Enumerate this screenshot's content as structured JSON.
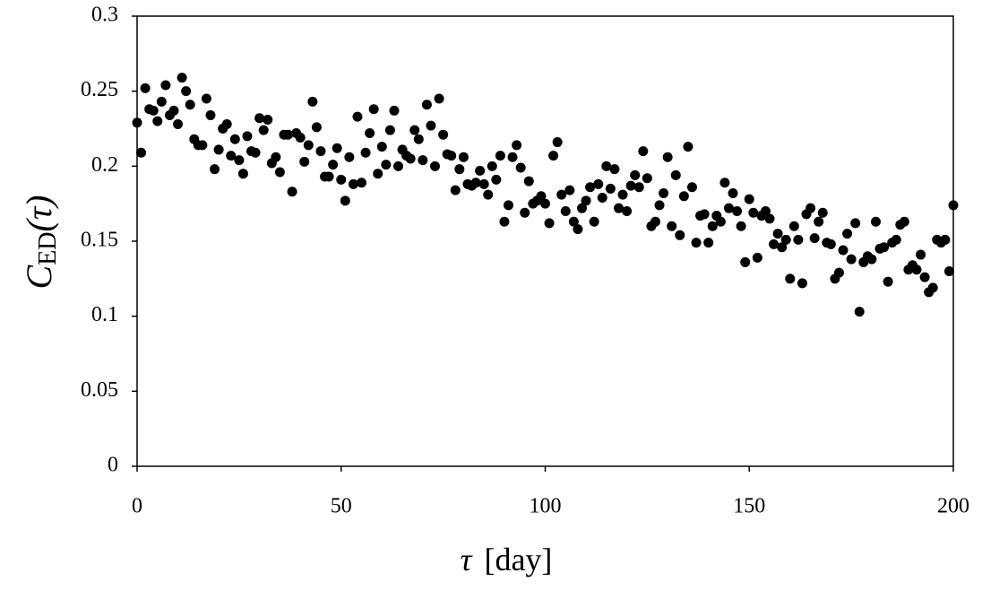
{
  "chart_data": {
    "type": "scatter",
    "xlabel_symbol": "τ",
    "xlabel_unit": "[day]",
    "ylabel_symbol": "C",
    "ylabel_subscript": "ED",
    "ylabel_argument": "(τ)",
    "xlim": [
      0,
      200
    ],
    "xticks": [
      0,
      50,
      100,
      150,
      200
    ],
    "ylim": [
      0,
      0.3
    ],
    "yticks": [
      0,
      0.05,
      0.1,
      0.15,
      0.2,
      0.25,
      0.3
    ],
    "grid": false,
    "color": "#000000",
    "x": [
      0,
      1,
      2,
      3,
      4,
      5,
      6,
      7,
      8,
      9,
      10,
      11,
      12,
      13,
      14,
      15,
      16,
      17,
      18,
      19,
      20,
      21,
      22,
      23,
      24,
      25,
      26,
      27,
      28,
      29,
      30,
      31,
      32,
      33,
      34,
      35,
      36,
      37,
      38,
      39,
      40,
      41,
      42,
      43,
      44,
      45,
      46,
      47,
      48,
      49,
      50,
      51,
      52,
      53,
      54,
      55,
      56,
      57,
      58,
      59,
      60,
      61,
      62,
      63,
      64,
      65,
      66,
      67,
      68,
      69,
      70,
      71,
      72,
      73,
      74,
      75,
      76,
      77,
      78,
      79,
      80,
      81,
      82,
      83,
      84,
      85,
      86,
      87,
      88,
      89,
      90,
      91,
      92,
      93,
      94,
      95,
      96,
      97,
      98,
      99,
      100,
      101,
      102,
      103,
      104,
      105,
      106,
      107,
      108,
      109,
      110,
      111,
      112,
      113,
      114,
      115,
      116,
      117,
      118,
      119,
      120,
      121,
      122,
      123,
      124,
      125,
      126,
      127,
      128,
      129,
      130,
      131,
      132,
      133,
      134,
      135,
      136,
      137,
      138,
      139,
      140,
      141,
      142,
      143,
      144,
      145,
      146,
      147,
      148,
      149,
      150,
      151,
      152,
      153,
      154,
      155,
      156,
      157,
      158,
      159,
      160,
      161,
      162,
      163,
      164,
      165,
      166,
      167,
      168,
      169,
      170,
      171,
      172,
      173,
      174,
      175,
      176,
      177,
      178,
      179,
      180,
      181,
      182,
      183,
      184,
      185,
      186,
      187,
      188,
      189,
      190,
      191,
      192,
      193,
      194,
      195,
      196,
      197,
      198,
      199,
      200
    ],
    "y": [
      0.229,
      0.209,
      0.252,
      0.238,
      0.237,
      0.23,
      0.243,
      0.254,
      0.234,
      0.237,
      0.228,
      0.259,
      0.25,
      0.241,
      0.218,
      0.214,
      0.214,
      0.245,
      0.234,
      0.198,
      0.211,
      0.225,
      0.228,
      0.207,
      0.218,
      0.204,
      0.195,
      0.22,
      0.21,
      0.209,
      0.232,
      0.224,
      0.231,
      0.202,
      0.206,
      0.196,
      0.221,
      0.221,
      0.183,
      0.222,
      0.219,
      0.203,
      0.214,
      0.243,
      0.226,
      0.21,
      0.193,
      0.193,
      0.201,
      0.212,
      0.191,
      0.177,
      0.206,
      0.188,
      0.233,
      0.189,
      0.209,
      0.222,
      0.238,
      0.195,
      0.213,
      0.201,
      0.224,
      0.237,
      0.2,
      0.211,
      0.207,
      0.205,
      0.224,
      0.218,
      0.204,
      0.241,
      0.227,
      0.2,
      0.245,
      0.221,
      0.208,
      0.207,
      0.184,
      0.198,
      0.206,
      0.188,
      0.187,
      0.189,
      0.197,
      0.188,
      0.181,
      0.2,
      0.191,
      0.207,
      0.163,
      0.174,
      0.206,
      0.214,
      0.199,
      0.169,
      0.19,
      0.175,
      0.177,
      0.18,
      0.175,
      0.162,
      0.207,
      0.216,
      0.181,
      0.17,
      0.184,
      0.163,
      0.158,
      0.172,
      0.177,
      0.186,
      0.163,
      0.188,
      0.179,
      0.2,
      0.185,
      0.198,
      0.172,
      0.181,
      0.17,
      0.187,
      0.194,
      0.186,
      0.21,
      0.192,
      0.16,
      0.163,
      0.174,
      0.182,
      0.206,
      0.16,
      0.194,
      0.154,
      0.18,
      0.213,
      0.186,
      0.149,
      0.167,
      0.168,
      0.149,
      0.16,
      0.167,
      0.163,
      0.189,
      0.172,
      0.182,
      0.17,
      0.16,
      0.136,
      0.178,
      0.169,
      0.139,
      0.167,
      0.17,
      0.165,
      0.148,
      0.155,
      0.146,
      0.151,
      0.125,
      0.16,
      0.151,
      0.122,
      0.168,
      0.172,
      0.152,
      0.163,
      0.169,
      0.149,
      0.148,
      0.125,
      0.129,
      0.144,
      0.155,
      0.138,
      0.162,
      0.103,
      0.136,
      0.14,
      0.138,
      0.163,
      0.145,
      0.146,
      0.123,
      0.149,
      0.151,
      0.161,
      0.163,
      0.131,
      0.134,
      0.131,
      0.141,
      0.126,
      0.116,
      0.119,
      0.151,
      0.149,
      0.151,
      0.13,
      0.174
    ]
  }
}
